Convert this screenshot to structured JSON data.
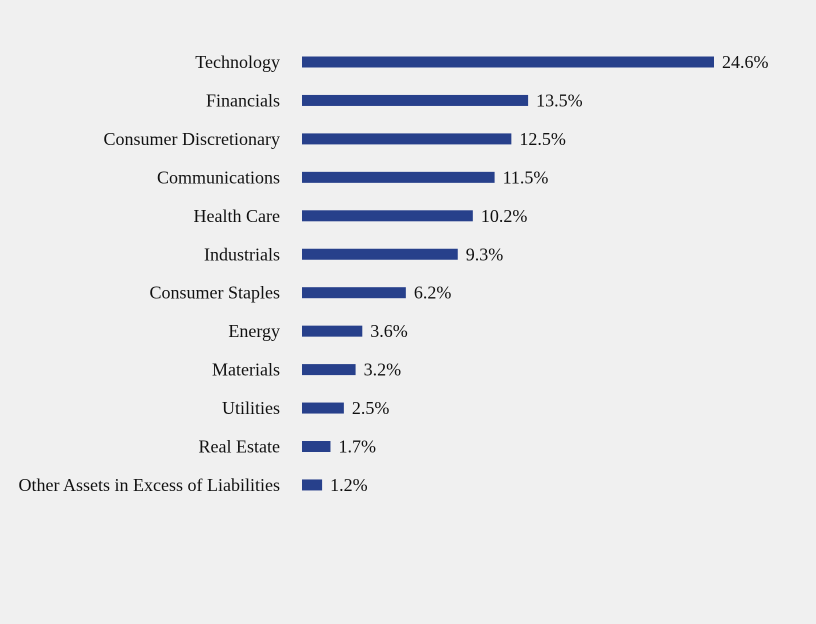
{
  "chart_data": {
    "type": "bar",
    "orientation": "horizontal",
    "categories": [
      "Technology",
      "Financials",
      "Consumer Discretionary",
      "Communications",
      "Health Care",
      "Industrials",
      "Consumer Staples",
      "Energy",
      "Materials",
      "Utilities",
      "Real Estate",
      "Other Assets in Excess of Liabilities"
    ],
    "values": [
      24.6,
      13.5,
      12.5,
      11.5,
      10.2,
      9.3,
      6.2,
      3.6,
      3.2,
      2.5,
      1.7,
      1.2
    ],
    "value_labels": [
      "24.6%",
      "13.5%",
      "12.5%",
      "11.5%",
      "10.2%",
      "9.3%",
      "6.2%",
      "3.6%",
      "3.2%",
      "2.5%",
      "1.7%",
      "1.2%"
    ],
    "unit": "%",
    "title": "",
    "xlabel": "",
    "ylabel": "",
    "xlim": [
      0,
      24.6
    ],
    "grid": false,
    "legend": "none",
    "colors": {
      "bar": "#27408b",
      "background": "#f0f0f0",
      "text": "#111111"
    }
  }
}
